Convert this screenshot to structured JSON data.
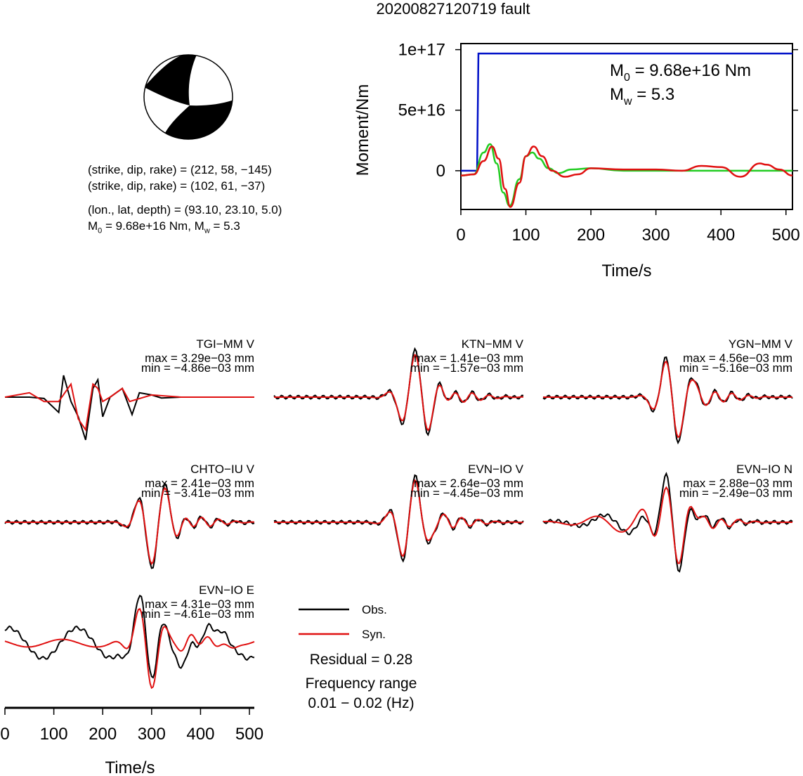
{
  "title": "20200827120719 fault",
  "mechanism": {
    "line1": "(strike, dip, rake) = (212, 58, −145)",
    "line2": "(strike, dip, rake) = (102, 61, −37)",
    "line3": "(lon., lat, depth) = (93.10, 23.10, 5.0)",
    "line4_m0": "M",
    "line4_m0_sub": "0",
    "line4_m0_val": " = 9.68e+16 Nm, M",
    "line4_mw_sub": "w",
    "line4_mw_val": " = 5.3"
  },
  "colors": {
    "observed": "#000000",
    "synthetic": "#e01010",
    "moment": "#0010c8",
    "stf": "#22cc22"
  },
  "chart_data": [
    {
      "type": "line",
      "xlabel": "Time/s",
      "ylabel": "Moment/Nm",
      "xlim": [
        0,
        510
      ],
      "ylim": [
        -3.2e+16,
        1.05e+17
      ],
      "x_ticks": [
        "0",
        "100",
        "200",
        "300",
        "400",
        "500"
      ],
      "y_ticks": [
        "0",
        "5e+16",
        "1e+17"
      ],
      "annotation": {
        "m0": "= 9.68e+16 Nm",
        "mw": "= 5.3"
      },
      "series": [
        {
          "kind": "moment",
          "x": [
            0,
            25,
            27,
            510
          ],
          "y": [
            0,
            0,
            9.68e+16,
            9.68e+16
          ]
        },
        {
          "kind": "stf_green",
          "x": [
            0,
            20,
            35,
            45,
            55,
            65,
            75,
            90,
            100,
            110,
            120,
            135,
            150,
            170,
            200,
            250,
            300,
            510
          ],
          "y": [
            -4000000000000000.0,
            -3000000000000000.0,
            1.5e+16,
            2.2e+16,
            6000000000000000.0,
            -1.8e+16,
            -2.9e+16,
            -7000000000000000.0,
            1.2e+16,
            1.5e+16,
            1e+16,
            2000000000000000.0,
            -2000000000000000.0,
            1000000000000000.0,
            2000000000000000.0,
            0.0,
            0.0,
            0.0
          ]
        },
        {
          "kind": "stf_red",
          "x": [
            0,
            20,
            35,
            48,
            58,
            68,
            76,
            90,
            100,
            112,
            125,
            140,
            160,
            180,
            200,
            250,
            300,
            340,
            370,
            400,
            430,
            460,
            470,
            490,
            510
          ],
          "y": [
            -4000000000000000.0,
            -3000000000000000.0,
            8000000000000000.0,
            2e+16,
            1e+16,
            -1.5e+16,
            -3e+16,
            -1e+16,
            1.2e+16,
            2e+16,
            1.2e+16,
            0.0,
            -5000000000000000.0,
            -3000000000000000.0,
            2000000000000000.0,
            1000000000000000.0,
            1000000000000000.0,
            0.0,
            4000000000000000.0,
            3000000000000000.0,
            -5000000000000000.0,
            6000000000000000.0,
            5000000000000000.0,
            1000000000000000.0,
            -4000000000000000.0
          ]
        }
      ]
    },
    {
      "type": "line",
      "xlabel": "Time/s",
      "xlim": [
        0,
        510
      ],
      "x_ticks": [
        "0",
        "100",
        "200",
        "300",
        "400",
        "500"
      ],
      "legend": [
        {
          "label": "Obs.",
          "kind": "observed"
        },
        {
          "label": "Syn.",
          "kind": "synthetic"
        }
      ],
      "residual": "Residual = 0.28",
      "frequency_label": "Frequency range",
      "frequency_range": "0.01 − 0.02 (Hz)",
      "traces": [
        {
          "name": "TGI−MM V",
          "max": "max = 3.29e−03 mm",
          "min": "min = −4.86e−03 mm",
          "obs": [
            [
              0,
              0
            ],
            [
              50,
              0
            ],
            [
              80,
              -0.03
            ],
            [
              110,
              -0.35
            ],
            [
              120,
              0.5
            ],
            [
              135,
              -0.1
            ],
            [
              150,
              -0.45
            ],
            [
              165,
              -0.98
            ],
            [
              180,
              0.2
            ],
            [
              190,
              0.4
            ],
            [
              200,
              -0.45
            ],
            [
              215,
              0.0
            ],
            [
              240,
              0.2
            ],
            [
              260,
              -0.4
            ],
            [
              275,
              0.1
            ],
            [
              300,
              0.05
            ],
            [
              320,
              -0.02
            ],
            [
              360,
              0.0
            ],
            [
              510,
              0
            ]
          ],
          "syn": [
            [
              0,
              0
            ],
            [
              50,
              0.1
            ],
            [
              80,
              -0.1
            ],
            [
              110,
              -0.1
            ],
            [
              135,
              0.3
            ],
            [
              150,
              -0.5
            ],
            [
              165,
              -0.75
            ],
            [
              180,
              0.3
            ],
            [
              190,
              0.2
            ],
            [
              200,
              -0.1
            ],
            [
              215,
              0.0
            ],
            [
              240,
              0.2
            ],
            [
              255,
              -0.1
            ],
            [
              300,
              0.05
            ],
            [
              360,
              0.0
            ],
            [
              510,
              0
            ]
          ]
        },
        {
          "name": "KTN−MM V",
          "max": "max = 1.41e−03 mm",
          "min": "min = −1.57e−03 mm"
        },
        {
          "name": "YGN−MM V",
          "max": "max = 4.56e−03 mm",
          "min": "min = −5.16e−03 mm"
        },
        {
          "name": "CHTO−IU V",
          "max": "max = 2.41e−03 mm",
          "min": "min = −3.41e−03 mm"
        },
        {
          "name": "EVN−IO V",
          "max": "max = 2.64e−03 mm",
          "min": "min = −4.45e−03 mm"
        },
        {
          "name": "EVN−IO N",
          "max": "max = 2.88e−03 mm",
          "min": "min = −2.49e−03 mm"
        },
        {
          "name": "EVN−IO E",
          "max": "max = 4.31e−03 mm",
          "min": "min = −4.61e−03 mm"
        }
      ]
    }
  ]
}
